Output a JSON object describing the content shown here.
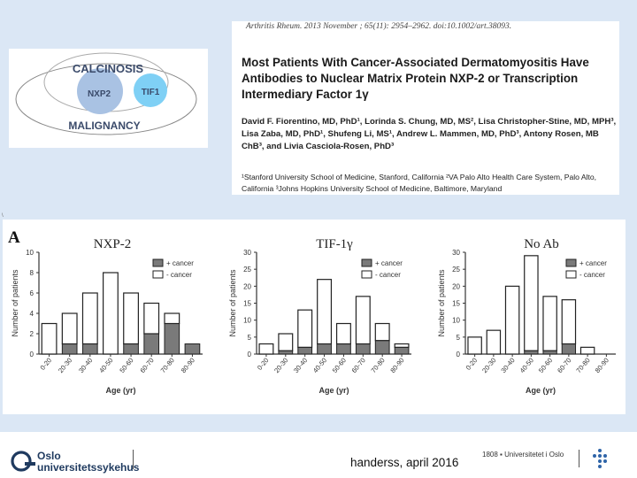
{
  "venn": {
    "outer": "CALCINOSIS",
    "bottom": "MALIGNANCY",
    "left": "NXP2",
    "right": "TIF1"
  },
  "citation": {
    "journal_line": "Arthritis Rheum. 2013 November ; 65(11): 2954–2962. doi:10.1002/art.38093.",
    "title": "Most Patients With Cancer-Associated Dermatomyositis Have Antibodies to Nuclear Matrix Protein NXP-2 or Transcription Intermediary Factor 1γ",
    "authors": "David F. Fiorentino, MD, PhD¹, Lorinda S. Chung, MD, MS², Lisa Christopher-Stine, MD, MPH³, Lisa Zaba, MD, PhD¹, Shufeng Li, MS¹, Andrew L. Mammen, MD, PhD³, Antony Rosen, MB ChB³, and Livia Casciola-Rosen, PhD³",
    "affiliations": "¹Stanford University School of Medicine, Stanford, California ²VA Palo Alto Health Care System, Palo Alto, California ³Johns Hopkins University School of Medicine, Baltimore, Maryland"
  },
  "slide_mark": "\\",
  "panel_label": "A",
  "chart_data": [
    {
      "type": "bar",
      "title": "NXP-2",
      "categories": [
        "0-20",
        "20-30",
        "30-40",
        "40-50",
        "50-60",
        "60-70",
        "70-80",
        "80-90"
      ],
      "series": [
        {
          "name": "+ cancer",
          "values": [
            0,
            1,
            1,
            0,
            1,
            2,
            3,
            1
          ]
        },
        {
          "name": "- cancer",
          "values": [
            3,
            3,
            5,
            8,
            5,
            3,
            1,
            0
          ]
        }
      ],
      "xlabel": "Age (yr)",
      "ylabel": "Number of patients",
      "ylim": [
        0,
        10
      ],
      "yticks": [
        "0",
        "2",
        "4",
        "6",
        "8",
        "10"
      ],
      "legend": [
        "+ cancer",
        "- cancer"
      ]
    },
    {
      "type": "bar",
      "title": "TIF-1γ",
      "categories": [
        "0-20",
        "20-30",
        "30-40",
        "40-50",
        "50-60",
        "60-70",
        "70-80",
        "80-90"
      ],
      "series": [
        {
          "name": "+ cancer",
          "values": [
            0,
            1,
            2,
            3,
            3,
            3,
            4,
            2
          ]
        },
        {
          "name": "- cancer",
          "values": [
            3,
            5,
            11,
            19,
            6,
            14,
            5,
            1
          ]
        }
      ],
      "xlabel": "Age (yr)",
      "ylabel": "Number of patients",
      "ylim": [
        0,
        30
      ],
      "yticks": [
        "0",
        "5",
        "10",
        "15",
        "20",
        "25",
        "30"
      ],
      "legend": [
        "+ cancer",
        "- cancer"
      ]
    },
    {
      "type": "bar",
      "title": "No Ab",
      "categories": [
        "0-20",
        "20-30",
        "30-40",
        "40-50",
        "50-60",
        "60-70",
        "70-80",
        "80-90"
      ],
      "series": [
        {
          "name": "+ cancer",
          "values": [
            0,
            0,
            0,
            1,
            1,
            3,
            0,
            0
          ]
        },
        {
          "name": "- cancer",
          "values": [
            5,
            7,
            20,
            28,
            16,
            13,
            2,
            0
          ]
        }
      ],
      "xlabel": "Age (yr)",
      "ylabel": "Number of patients",
      "ylim": [
        0,
        30
      ],
      "yticks": [
        "0",
        "5",
        "10",
        "15",
        "20",
        "25",
        "30"
      ],
      "legend": [
        "+ cancer",
        "- cancer"
      ]
    }
  ],
  "footer": {
    "text": "handerss, april 2016",
    "oslo_line1": "Oslo",
    "oslo_line2": "universitetssykehus",
    "uio": "1808 ▪ Universitetet i Oslo"
  },
  "colors": {
    "cancer_fill": "#7a7a7a",
    "nocancer_fill": "#ffffff"
  }
}
